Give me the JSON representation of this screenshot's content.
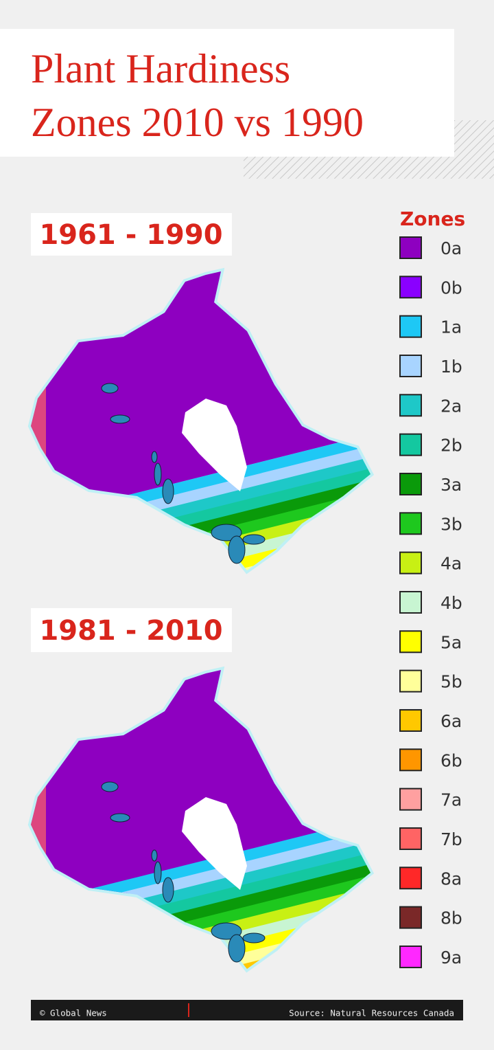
{
  "header": {
    "title_lines": [
      "Plant Hardiness",
      "Zones 2010 vs 1990"
    ]
  },
  "panels": [
    {
      "label": "1961 - 1990"
    },
    {
      "label": "1981 - 2010"
    }
  ],
  "legend": {
    "title": "Zones",
    "zones": [
      {
        "label": "0a",
        "color": "#8e00c0"
      },
      {
        "label": "0b",
        "color": "#8a00ff"
      },
      {
        "label": "1a",
        "color": "#1ec8f5"
      },
      {
        "label": "1b",
        "color": "#a8d4ff"
      },
      {
        "label": "2a",
        "color": "#1ec8c8"
      },
      {
        "label": "2b",
        "color": "#14c8a0"
      },
      {
        "label": "3a",
        "color": "#0a9a0a"
      },
      {
        "label": "3b",
        "color": "#1ec81e"
      },
      {
        "label": "4a",
        "color": "#c8f014"
      },
      {
        "label": "4b",
        "color": "#c8f5d2"
      },
      {
        "label": "5a",
        "color": "#ffff00"
      },
      {
        "label": "5b",
        "color": "#ffff9a"
      },
      {
        "label": "6a",
        "color": "#ffc800"
      },
      {
        "label": "6b",
        "color": "#ff9600"
      },
      {
        "label": "7a",
        "color": "#ffa0a0"
      },
      {
        "label": "7b",
        "color": "#ff6464"
      },
      {
        "label": "8a",
        "color": "#ff2828"
      },
      {
        "label": "8b",
        "color": "#7a2828"
      },
      {
        "label": "9a",
        "color": "#ff28ff"
      }
    ]
  },
  "footer": {
    "credit": "© Global News",
    "source": "Source: Natural Resources Canada"
  }
}
